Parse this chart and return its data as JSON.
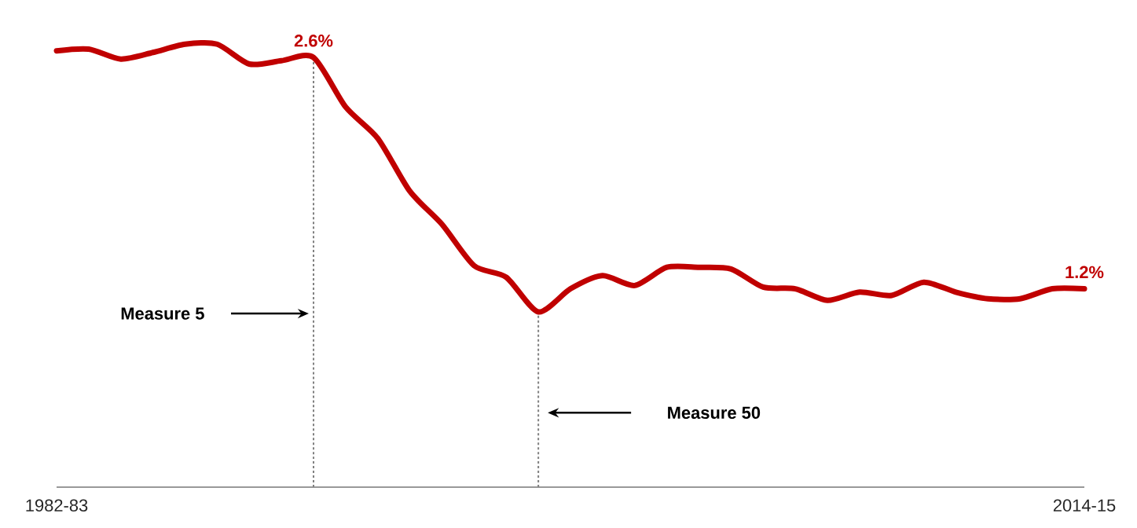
{
  "chart_data": {
    "type": "line",
    "categories": [
      "1982-83",
      null,
      null,
      null,
      null,
      null,
      null,
      null,
      null,
      null,
      null,
      null,
      null,
      null,
      null,
      null,
      null,
      null,
      null,
      null,
      null,
      null,
      null,
      null,
      null,
      null,
      null,
      null,
      null,
      null,
      null,
      null,
      "2014-15"
    ],
    "series": [
      {
        "color": "#c00000",
        "line_style": "solid",
        "values": [
          2.64,
          2.65,
          2.59,
          2.63,
          2.68,
          2.68,
          2.56,
          2.58,
          2.6,
          2.3,
          2.11,
          1.79,
          1.59,
          1.34,
          1.27,
          1.06,
          1.2,
          1.28,
          1.22,
          1.33,
          1.33,
          1.32,
          1.21,
          1.2,
          1.13,
          1.18,
          1.16,
          1.24,
          1.18,
          1.14,
          1.14,
          1.2,
          1.2
        ],
        "value_labels": [
          null,
          null,
          null,
          null,
          null,
          null,
          null,
          null,
          "2.6%",
          null,
          null,
          null,
          null,
          null,
          null,
          null,
          null,
          null,
          null,
          null,
          null,
          null,
          null,
          null,
          null,
          null,
          null,
          null,
          null,
          null,
          null,
          null,
          "1.2%"
        ]
      }
    ],
    "tick_labels": "x",
    "annotations": [
      "Measure 5",
      "Measure 50"
    ]
  }
}
